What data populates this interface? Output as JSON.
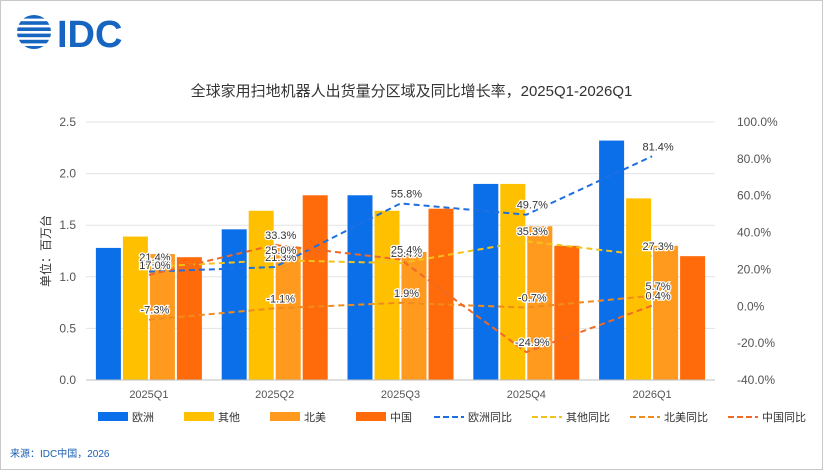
{
  "logo": {
    "text": "IDC"
  },
  "chart_data": {
    "type": "bar",
    "title": "全球家用扫地机器人出货量分区域及同比增长率，2025Q1-2026Q1",
    "ylabel": "单位：百万台",
    "ylim": [
      0,
      2.5
    ],
    "y2lim": [
      -40,
      100
    ],
    "yticks": [
      "0.0",
      "0.5",
      "1.0",
      "1.5",
      "2.0",
      "2.5"
    ],
    "y2ticks": [
      "-40.0%",
      "-20.0%",
      "0.0%",
      "20.0%",
      "40.0%",
      "60.0%",
      "80.0%",
      "100.0%"
    ],
    "categories": [
      "2025Q1",
      "2025Q2",
      "2025Q3",
      "2025Q4",
      "2026Q1"
    ],
    "series": [
      {
        "name": "欧洲",
        "color": "#0a6fe8",
        "values": [
          1.28,
          1.46,
          1.79,
          1.9,
          2.32
        ]
      },
      {
        "name": "其他",
        "color": "#ffc000",
        "values": [
          1.39,
          1.64,
          1.64,
          1.9,
          1.76
        ]
      },
      {
        "name": "北美",
        "color": "#ff9a1f",
        "values": [
          1.22,
          1.28,
          1.24,
          1.49,
          1.3
        ]
      },
      {
        "name": "中国",
        "color": "#ff6a0a",
        "values": [
          1.19,
          1.79,
          1.66,
          1.3,
          1.2
        ]
      }
    ],
    "line_series": [
      {
        "name": "欧洲同比",
        "color": "#1f6fe0",
        "values": [
          18.8,
          21.3,
          55.8,
          49.7,
          81.4
        ],
        "labels": [
          "18.8%",
          "21.3%",
          "55.8%",
          "49.7%",
          "81.4%"
        ]
      },
      {
        "name": "其他同比",
        "color": "#f2c21a",
        "values": [
          21.4,
          25.0,
          23.4,
          35.3,
          27.3
        ],
        "labels": [
          "21.4%",
          "25.0%",
          "23.4%",
          "35.3%",
          "27.3%"
        ]
      },
      {
        "name": "北美同比",
        "color": "#f08c1e",
        "values": [
          -7.3,
          -1.1,
          1.9,
          -0.7,
          5.7
        ],
        "labels": [
          "-7.3%",
          "-1.1%",
          "1.9%",
          "-0.7%",
          "5.7%"
        ]
      },
      {
        "name": "中国同比",
        "color": "#ee6a26",
        "values": [
          17.0,
          33.3,
          25.4,
          -24.9,
          0.4
        ],
        "labels": [
          "17.0%",
          "33.3%",
          "25.4%",
          "-24.9%",
          "0.4%"
        ]
      }
    ]
  },
  "source": "来源：IDC中国，2026"
}
